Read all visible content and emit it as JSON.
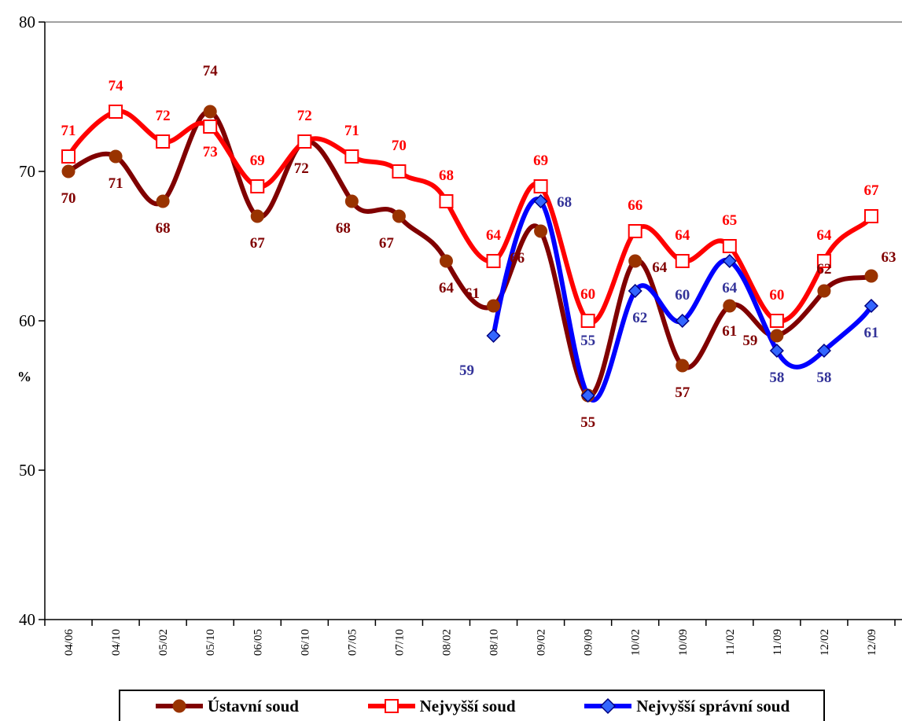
{
  "chart_data": {
    "type": "line",
    "categories": [
      "04/06",
      "04/10",
      "05/02",
      "05/10",
      "06/05",
      "06/10",
      "07/05",
      "07/10",
      "08/02",
      "08/10",
      "09/02",
      "09/09",
      "10/02",
      "10/09",
      "11/02",
      "11/09",
      "12/02",
      "12/09"
    ],
    "ylim": [
      40,
      80
    ],
    "yticks": [
      "40",
      "50",
      "60",
      "70",
      "80"
    ],
    "ylabel": "%",
    "xlabel": "",
    "title": "",
    "grid": false,
    "legend_position": "bottom",
    "series": [
      {
        "name": "Ústavní soud",
        "color": "#800000",
        "marker": "circle",
        "values": [
          70,
          71,
          68,
          74,
          67,
          72,
          68,
          67,
          64,
          61,
          66,
          55,
          64,
          57,
          61,
          59,
          62,
          63
        ],
        "labels": [
          "70",
          "71",
          "68",
          "74",
          "67",
          "72",
          "68",
          "67",
          "64",
          "61",
          "66",
          "55",
          "64",
          "57",
          "61",
          "59",
          "62",
          "63"
        ]
      },
      {
        "name": "Nejvyšší soud",
        "color": "#ff0000",
        "marker": "square",
        "values": [
          71,
          74,
          72,
          73,
          69,
          72,
          71,
          70,
          68,
          64,
          69,
          60,
          66,
          64,
          65,
          60,
          64,
          67
        ],
        "labels": [
          "71",
          "74",
          "72",
          "73",
          "69",
          "72",
          "71",
          "70",
          "68",
          "64",
          "69",
          "60",
          "66",
          "64",
          "65",
          "60",
          "64",
          "67"
        ]
      },
      {
        "name": "Nejvyšší správní soud",
        "color": "#0000ff",
        "label_color": "#333399",
        "marker": "diamond",
        "values": [
          null,
          null,
          null,
          null,
          null,
          null,
          null,
          null,
          null,
          59,
          68,
          55,
          62,
          60,
          64,
          58,
          58,
          61
        ],
        "labels": [
          null,
          null,
          null,
          null,
          null,
          null,
          null,
          null,
          null,
          "59",
          "68",
          "55",
          "62",
          "60",
          "64",
          "58",
          "58",
          "61"
        ]
      }
    ]
  }
}
